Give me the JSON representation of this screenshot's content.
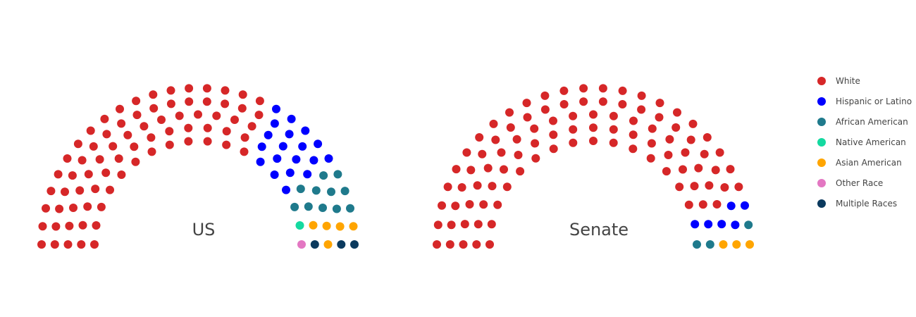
{
  "chart_data": {
    "type": "parliament",
    "legend": {
      "placement": "right",
      "entries": [
        {
          "key": "white",
          "label": "White",
          "color": "#d62728"
        },
        {
          "key": "hispanic",
          "label": "Hispanic or Latino",
          "color": "#0000ff"
        },
        {
          "key": "african",
          "label": "African American",
          "color": "#1f7a8c"
        },
        {
          "key": "native",
          "label": "Native American",
          "color": "#14d9a0"
        },
        {
          "key": "asian",
          "label": "Asian American",
          "color": "#ffa500"
        },
        {
          "key": "other",
          "label": "Other Race",
          "color": "#e377c2"
        },
        {
          "key": "multiple",
          "label": "Multiple Races",
          "color": "#0b3a5e"
        }
      ]
    },
    "charts": [
      {
        "name": "US",
        "counts": {
          "white": 75,
          "hispanic": 19,
          "african": 11,
          "native": 1,
          "asian": 5,
          "other": 1,
          "multiple": 3
        }
      },
      {
        "name": "Senate",
        "counts": {
          "white": 95,
          "hispanic": 6,
          "african": 3,
          "native": 0,
          "asian": 3,
          "other": 0,
          "multiple": 0
        }
      }
    ]
  }
}
